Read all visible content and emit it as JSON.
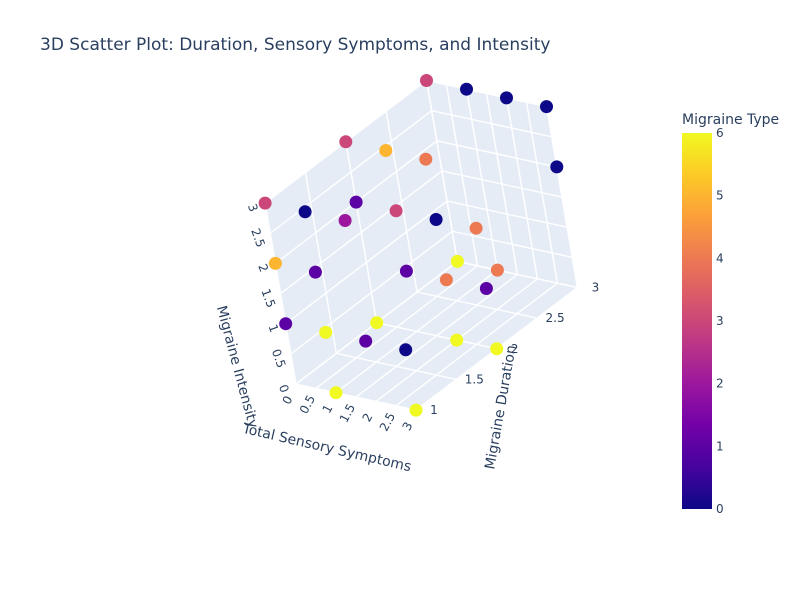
{
  "chart_data": {
    "type": "scatter3d",
    "title": "3D Scatter Plot: Duration, Sensory Symptoms, and Intensity",
    "x_axis": {
      "label": "Total Sensory Symptoms",
      "ticks": [
        "0",
        "0.5",
        "1",
        "1.5",
        "2",
        "2.5",
        "3"
      ],
      "range": [
        0,
        3
      ]
    },
    "y_axis": {
      "label": "Migraine Duration",
      "ticks": [
        "1",
        "1.5",
        "2",
        "2.5",
        "3"
      ],
      "range": [
        1,
        3
      ]
    },
    "z_axis": {
      "label": "Migraine Intensity",
      "ticks": [
        "0",
        "0.5",
        "1",
        "1.5",
        "2",
        "2.5",
        "3"
      ],
      "range": [
        0,
        3
      ]
    },
    "colorbar": {
      "title": "Migraine Type",
      "ticks": [
        "0",
        "1",
        "2",
        "3",
        "4",
        "5",
        "6"
      ],
      "range": [
        0,
        6
      ],
      "colorscale": "Plasma"
    },
    "points": [
      {
        "x": 0,
        "y": 1,
        "z": 3,
        "type": 3
      },
      {
        "x": 0,
        "y": 2,
        "z": 3,
        "type": 3
      },
      {
        "x": 0,
        "y": 3,
        "z": 3,
        "type": 3
      },
      {
        "x": 1,
        "y": 3,
        "z": 3,
        "type": 0
      },
      {
        "x": 2,
        "y": 3,
        "z": 3,
        "type": 0
      },
      {
        "x": 3,
        "y": 3,
        "z": 3,
        "type": 0
      },
      {
        "x": 1,
        "y": 2,
        "z": 3,
        "type": 5
      },
      {
        "x": 1,
        "y": 1,
        "z": 3,
        "type": 0
      },
      {
        "x": 2,
        "y": 1,
        "z": 3,
        "type": 2
      },
      {
        "x": 2,
        "y": 2,
        "z": 3,
        "type": 4
      },
      {
        "x": 0,
        "y": 2,
        "z": 2,
        "type": 1
      },
      {
        "x": 1,
        "y": 1,
        "z": 2,
        "type": 1
      },
      {
        "x": 1,
        "y": 2,
        "z": 2,
        "type": 3
      },
      {
        "x": 2,
        "y": 2,
        "z": 2,
        "type": 0
      },
      {
        "x": 3,
        "y": 2,
        "z": 2,
        "type": 4
      },
      {
        "x": 3,
        "y": 3,
        "z": 2,
        "type": 0
      },
      {
        "x": 0,
        "y": 1,
        "z": 2,
        "type": 5
      },
      {
        "x": 1,
        "y": 2,
        "z": 1,
        "type": 1
      },
      {
        "x": 2,
        "y": 1,
        "z": 1,
        "type": 1
      },
      {
        "x": 2,
        "y": 2,
        "z": 1,
        "type": 4
      },
      {
        "x": 3,
        "y": 1,
        "z": 1,
        "type": 0
      },
      {
        "x": 3,
        "y": 2,
        "z": 1,
        "type": 1
      },
      {
        "x": 0,
        "y": 1,
        "z": 1,
        "type": 1
      },
      {
        "x": 1,
        "y": 1,
        "z": 1,
        "type": 6
      },
      {
        "x": 0,
        "y": 3,
        "z": 0,
        "type": 6
      },
      {
        "x": 0,
        "y": 2,
        "z": 0,
        "type": 6
      },
      {
        "x": 1,
        "y": 1,
        "z": 0,
        "type": 6
      },
      {
        "x": 3,
        "y": 1,
        "z": 0,
        "type": 6
      },
      {
        "x": 2,
        "y": 2,
        "z": 0,
        "type": 6
      },
      {
        "x": 3,
        "y": 2,
        "z": 0,
        "type": 6
      },
      {
        "x": 1,
        "y": 3,
        "z": 0,
        "type": 4
      }
    ]
  }
}
